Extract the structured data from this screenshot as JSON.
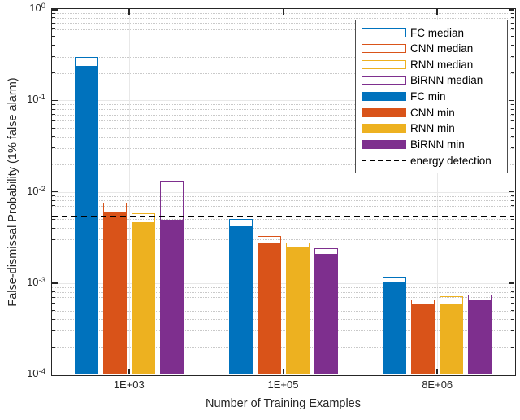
{
  "chart_data": {
    "type": "bar",
    "title": "",
    "xlabel": "Number of Training Examples",
    "ylabel": "False-dismissal Probability (1% false alarm)",
    "yscale": "log",
    "ylim": [
      0.0001,
      1
    ],
    "grid": true,
    "minor_grid": true,
    "legend_position": "top-right",
    "y_ticks": [
      {
        "base": "10",
        "exp": "0"
      },
      {
        "base": "10",
        "exp": "-1"
      },
      {
        "base": "10",
        "exp": "-2"
      },
      {
        "base": "10",
        "exp": "-3"
      },
      {
        "base": "10",
        "exp": "-4"
      }
    ],
    "categories": [
      "1E+03",
      "1E+05",
      "8E+06"
    ],
    "series": [
      {
        "name": "FC median",
        "style": "outline",
        "color": "#0072BD",
        "values": [
          0.3,
          0.005,
          0.00117
        ]
      },
      {
        "name": "CNN median",
        "style": "outline",
        "color": "#D95319",
        "values": [
          0.0076,
          0.0033,
          0.00066
        ]
      },
      {
        "name": "RNN median",
        "style": "outline",
        "color": "#EDB120",
        "values": [
          0.0058,
          0.0028,
          0.00071
        ]
      },
      {
        "name": "BiRNN median",
        "style": "outline",
        "color": "#7E2F8E",
        "values": [
          0.0132,
          0.0024,
          0.00074
        ]
      },
      {
        "name": "FC min",
        "style": "fill",
        "color": "#0072BD",
        "values": [
          0.24,
          0.0042,
          0.00104
        ]
      },
      {
        "name": "CNN min",
        "style": "fill",
        "color": "#D95319",
        "values": [
          0.0059,
          0.0027,
          0.00058
        ]
      },
      {
        "name": "RNN min",
        "style": "fill",
        "color": "#EDB120",
        "values": [
          0.0046,
          0.0025,
          0.00059
        ]
      },
      {
        "name": "BiRNN min",
        "style": "fill",
        "color": "#7E2F8E",
        "values": [
          0.0049,
          0.0021,
          0.00066
        ]
      }
    ],
    "reference_line": {
      "label": "energy detection",
      "value": 0.0054,
      "style": "dashed",
      "color": "#000000"
    }
  },
  "colors": {
    "axis": "#262626",
    "grid_major": "#e8e8e8",
    "grid_minor": "#c9c9c9",
    "legend_border": "#4d4d4d"
  }
}
